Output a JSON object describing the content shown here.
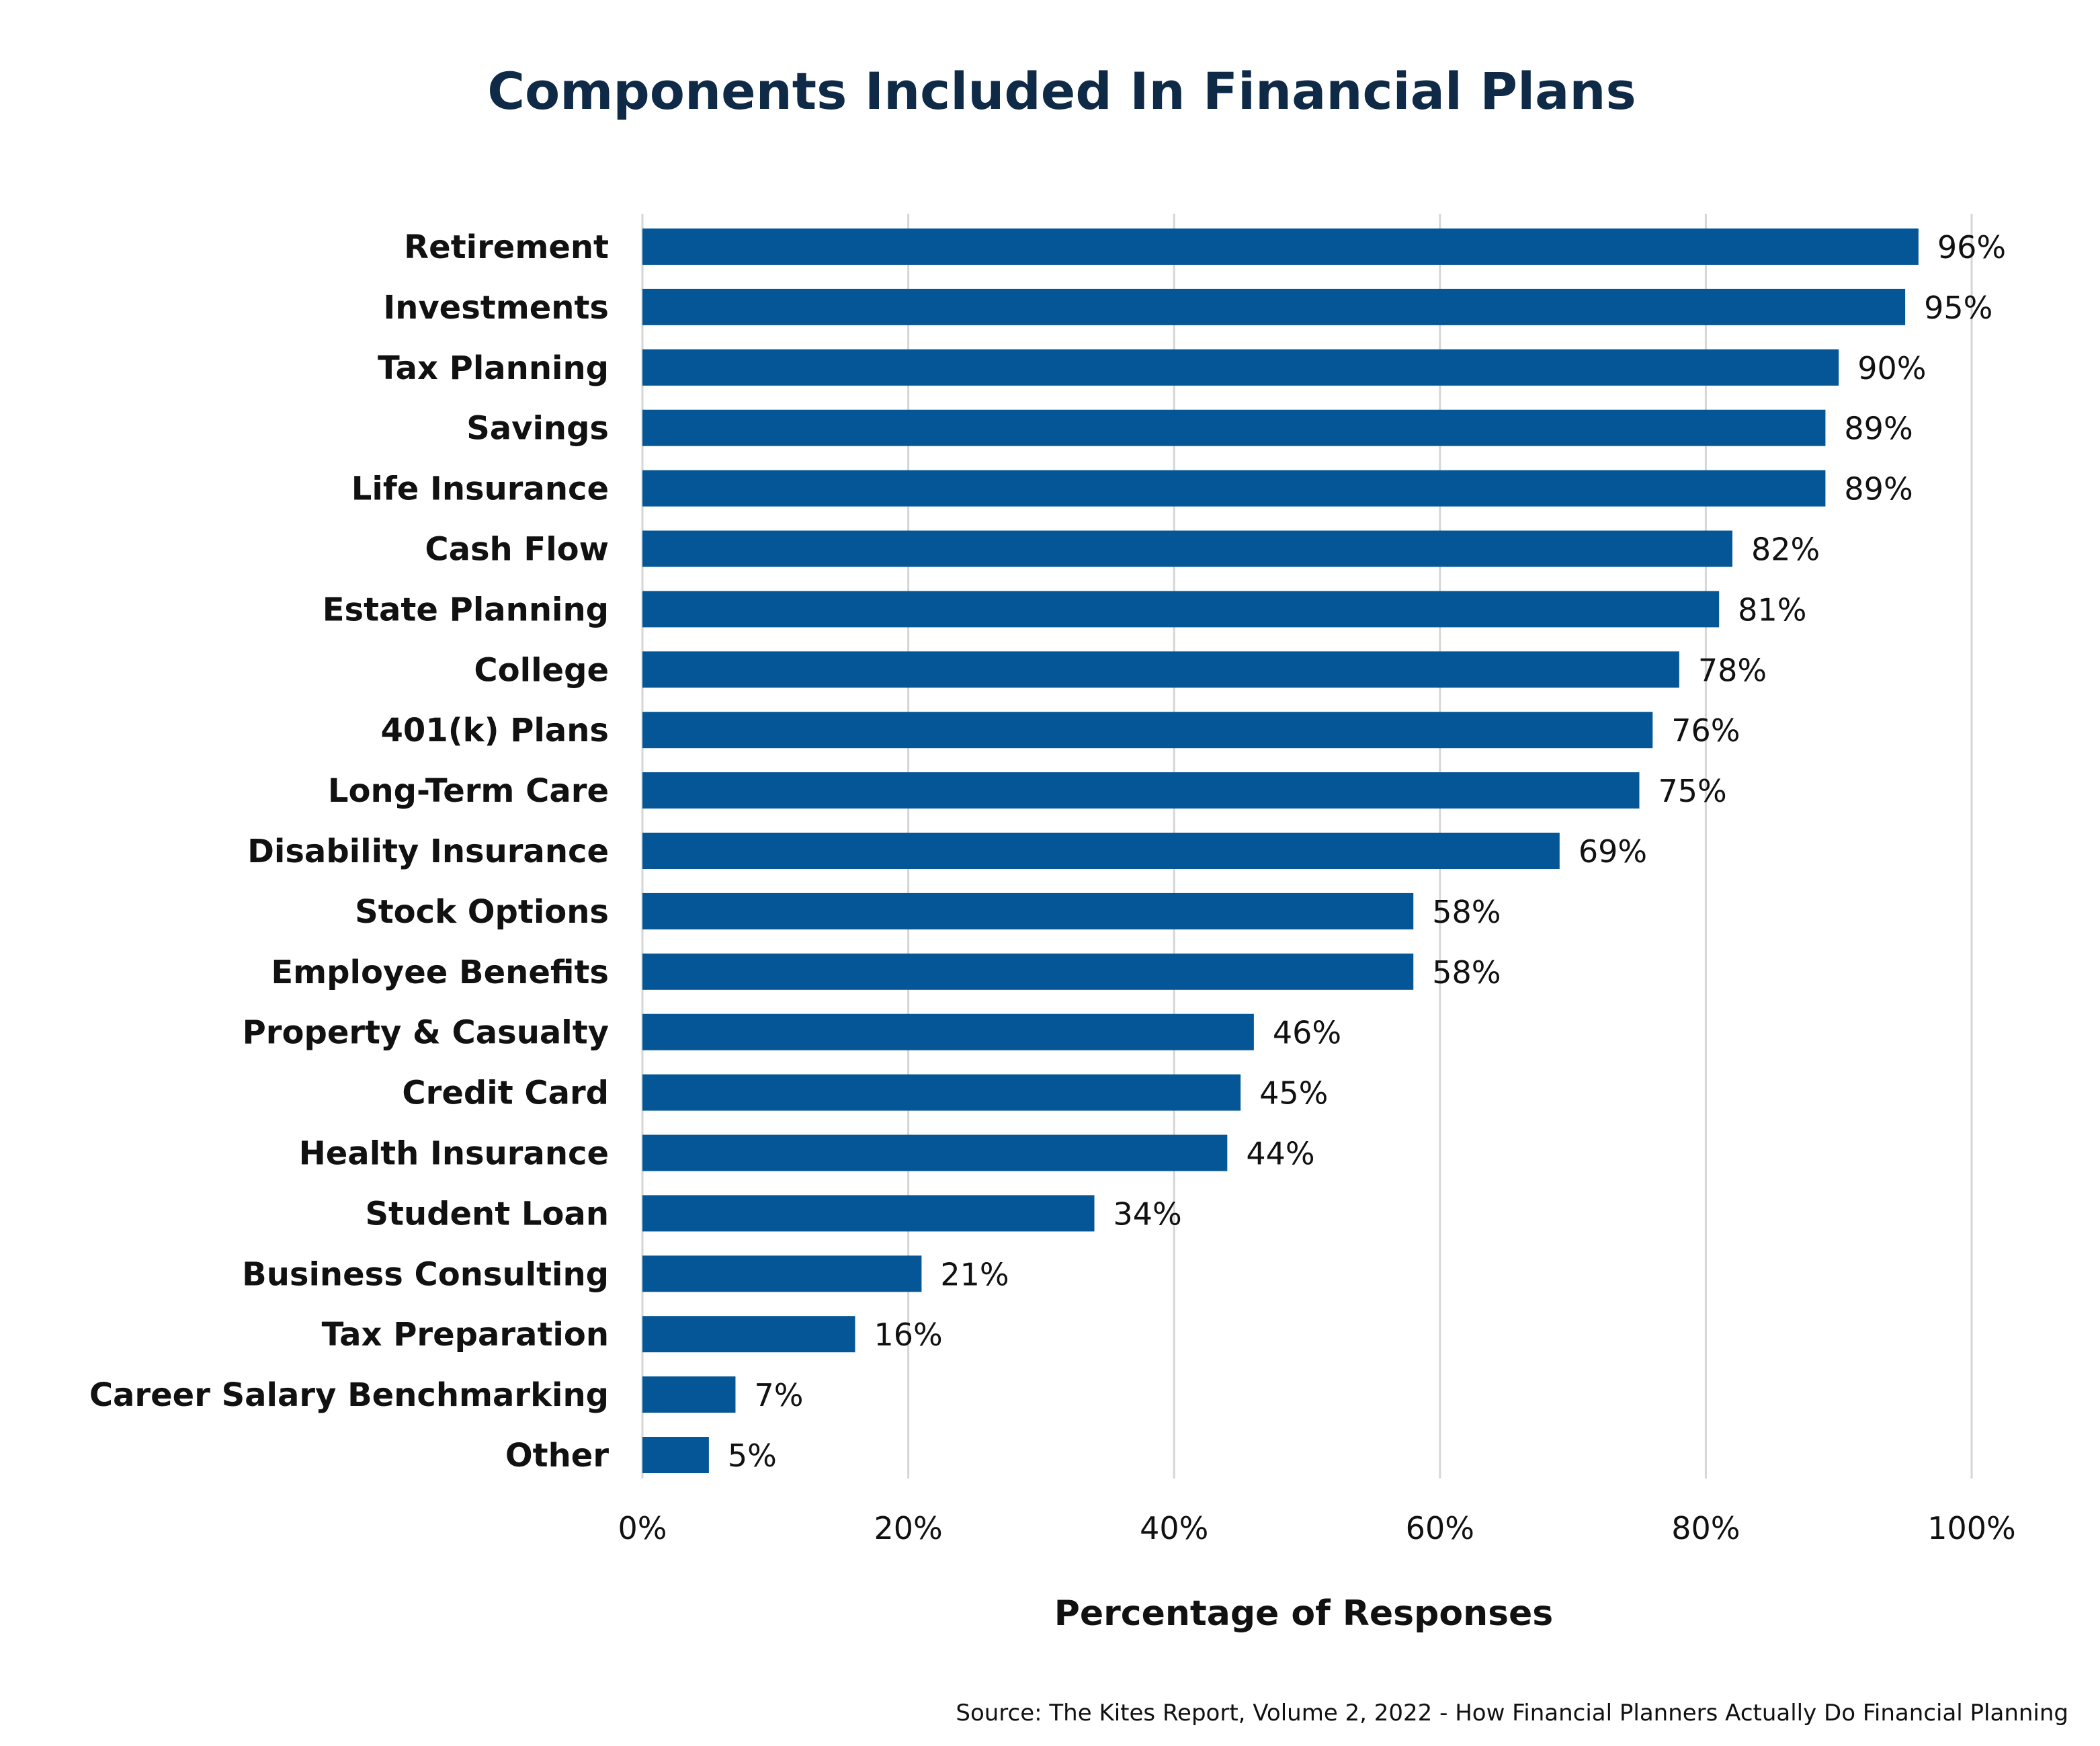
{
  "chart_data": {
    "type": "bar",
    "orientation": "horizontal",
    "title": "Components Included In Financial Plans",
    "xlabel": "Percentage of Responses",
    "ylabel": "",
    "categories": [
      "Retirement",
      "Investments",
      "Tax Planning",
      "Savings",
      "Life Insurance",
      "Cash Flow",
      "Estate Planning",
      "College",
      "401(k) Plans",
      "Long-Term Care",
      "Disability Insurance",
      "Stock Options",
      "Employee Benefits",
      "Property & Casualty",
      "Credit Card",
      "Health Insurance",
      "Student Loan",
      "Business Consulting",
      "Tax Preparation",
      "Career Salary Benchmarking",
      "Other"
    ],
    "values": [
      96,
      95,
      90,
      89,
      89,
      82,
      81,
      78,
      76,
      75,
      69,
      58,
      58,
      46,
      45,
      44,
      34,
      21,
      16,
      7,
      5
    ],
    "value_labels": [
      "96%",
      "95%",
      "90%",
      "89%",
      "89%",
      "82%",
      "81%",
      "78%",
      "76%",
      "75%",
      "69%",
      "58%",
      "58%",
      "46%",
      "45%",
      "44%",
      "34%",
      "21%",
      "16%",
      "7%",
      "5%"
    ],
    "xlim": [
      0,
      100
    ],
    "xticks": [
      0,
      20,
      40,
      60,
      80,
      100
    ],
    "xtick_labels": [
      "0%",
      "20%",
      "40%",
      "60%",
      "80%",
      "100%"
    ],
    "grid": "vertical",
    "bar_color": "#055696",
    "title_color": "#0e2a47",
    "source": "Source: The Kites Report, Volume 2, 2022 - How Financial Planners Actually Do Financial Planning"
  }
}
